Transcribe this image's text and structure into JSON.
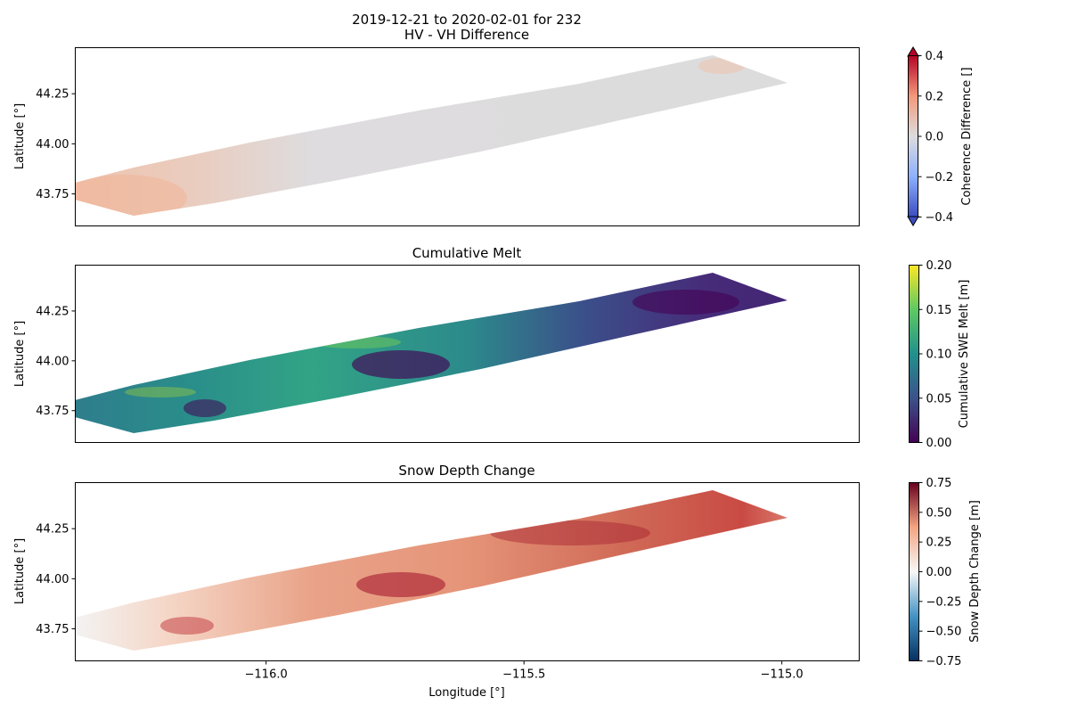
{
  "figure": {
    "suptitle_line1": "2019-12-21 to 2020-02-01 for 232",
    "suptitle_line2": "HV - VH Difference",
    "xlabel": "Longitude [°]"
  },
  "chart_data": [
    {
      "type": "heatmap",
      "title": "HV - VH Difference",
      "ylabel": "Latitude [°]",
      "xlim": [
        -116.37,
        -114.85
      ],
      "ylim": [
        43.59,
        44.48
      ],
      "x_ticks": [
        -116.0,
        -115.5,
        -115.0
      ],
      "x_tick_labels": [],
      "y_ticks": [
        43.75,
        44.0,
        44.25
      ],
      "y_tick_labels": [
        "43.75",
        "44.00",
        "44.25"
      ],
      "colormap": "coolwarm",
      "colorbar": {
        "label": "Coherence Difference []",
        "range": [
          -0.4,
          0.4
        ],
        "ticks": [
          0.4,
          0.2,
          0.0,
          -0.2,
          -0.4
        ],
        "tick_labels": [
          "0.4",
          "0.2",
          "0.0",
          "−0.2",
          "−0.4"
        ],
        "extend": "both",
        "colors": [
          "#3b4cc0",
          "#8db0fe",
          "#dddddd",
          "#f4987a",
          "#b40426"
        ]
      },
      "summary": "mostly near 0.0 (grey); slight positive (light orange) speckle in the southwest end near -116.2, 43.75"
    },
    {
      "type": "heatmap",
      "title": "Cumulative Melt",
      "ylabel": "Latitude [°]",
      "xlim": [
        -116.37,
        -114.85
      ],
      "ylim": [
        43.59,
        44.48
      ],
      "x_ticks": [
        -116.0,
        -115.5,
        -115.0
      ],
      "x_tick_labels": [],
      "y_ticks": [
        43.75,
        44.0,
        44.25
      ],
      "y_tick_labels": [
        "43.75",
        "44.00",
        "44.25"
      ],
      "colormap": "viridis",
      "colorbar": {
        "label": "Cumulative SWE Melt [m]",
        "range": [
          0.0,
          0.2
        ],
        "ticks": [
          0.2,
          0.15,
          0.1,
          0.05,
          0.0
        ],
        "tick_labels": [
          "0.20",
          "0.15",
          "0.10",
          "0.05",
          "0.00"
        ],
        "extend": "neither",
        "colors": [
          "#440154",
          "#3b528b",
          "#21918c",
          "#5ec962",
          "#fde725"
        ]
      },
      "summary": "western half mostly 0.08–0.13 m; low melt (~0.0–0.02 m) patches near -115.7, 43.98 and in the northeast around -115.2, 44.3"
    },
    {
      "type": "heatmap",
      "title": "Snow Depth Change",
      "ylabel": "Latitude [°]",
      "xlim": [
        -116.37,
        -114.85
      ],
      "ylim": [
        43.59,
        44.48
      ],
      "x_ticks": [
        -116.0,
        -115.5,
        -115.0
      ],
      "x_tick_labels": [
        "−116.0",
        "−115.5",
        "−115.0"
      ],
      "y_ticks": [
        43.75,
        44.0,
        44.25
      ],
      "y_tick_labels": [
        "43.75",
        "44.00",
        "44.25"
      ],
      "colormap": "RdBu_r",
      "colorbar": {
        "label": "Snow Depth Change [m]",
        "range": [
          -0.75,
          0.75
        ],
        "ticks": [
          0.75,
          0.5,
          0.25,
          0.0,
          -0.25,
          -0.5,
          -0.75
        ],
        "tick_labels": [
          "0.75",
          "0.50",
          "0.25",
          "0.00",
          "−0.25",
          "−0.50",
          "−0.75"
        ],
        "extend": "neither",
        "colors": [
          "#053061",
          "#4393c3",
          "#f7f7f7",
          "#f4a582",
          "#67001f"
        ]
      },
      "summary": "mostly positive 0.2–0.4 m; highest (~0.6–0.75 m) near -115.7, 43.95 and -115.4 to -115.2, 44.2–44.3; near 0 at the far southwest end"
    }
  ]
}
